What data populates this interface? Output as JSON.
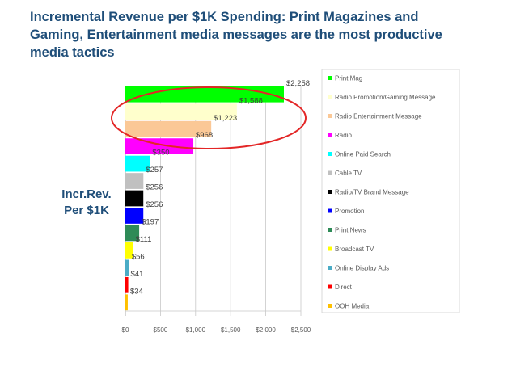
{
  "title": "Incremental Revenue per $1K Spending:   Print Magazines and\nGaming, Entertainment media messages are the most productive\nmedia tactics",
  "y_axis_title": "Incr.Rev.\nPer $1K",
  "chart_data": {
    "type": "bar",
    "orientation": "horizontal",
    "categories": [
      "Print Mag",
      "Radio Promotion/Gaming Message",
      "Radio Entertainment Message",
      "Radio",
      "Online Paid Search",
      "Cable TV",
      "Radio/TV Brand Message",
      "Promotion",
      "Print News",
      "Broadcast TV",
      "Online Display Ads",
      "Direct",
      "OOH Media"
    ],
    "values": [
      2258,
      1588,
      1223,
      968,
      350,
      257,
      256,
      256,
      197,
      111,
      56,
      41,
      34
    ],
    "data_labels": [
      "$2,258",
      "$1,588",
      "$1,223",
      "$968",
      "$350",
      "$257",
      "$256",
      "$256",
      "$197",
      "$111",
      "$56",
      "$41",
      "$34"
    ],
    "colors": [
      "#00ff00",
      "#ffffcc",
      "#fbc896",
      "#ff00ff",
      "#00ffff",
      "#c0c0c0",
      "#000000",
      "#0000ff",
      "#2e8b57",
      "#ffff00",
      "#4bacc6",
      "#ff0000",
      "#ffc000"
    ],
    "xlim": [
      0,
      2500
    ],
    "x_ticks": [
      0,
      500,
      1000,
      1500,
      2000,
      2500
    ],
    "x_tick_labels": [
      "$0",
      "$500",
      "$1,000",
      "$1,500",
      "$2,000",
      "$2,500"
    ],
    "gridlines": true,
    "legend_position": "right",
    "annotation": "red ellipse highlighting Print Mag, Radio Promotion/Gaming Message and Radio Entertainment Message",
    "annotation_color": "#e32626"
  }
}
